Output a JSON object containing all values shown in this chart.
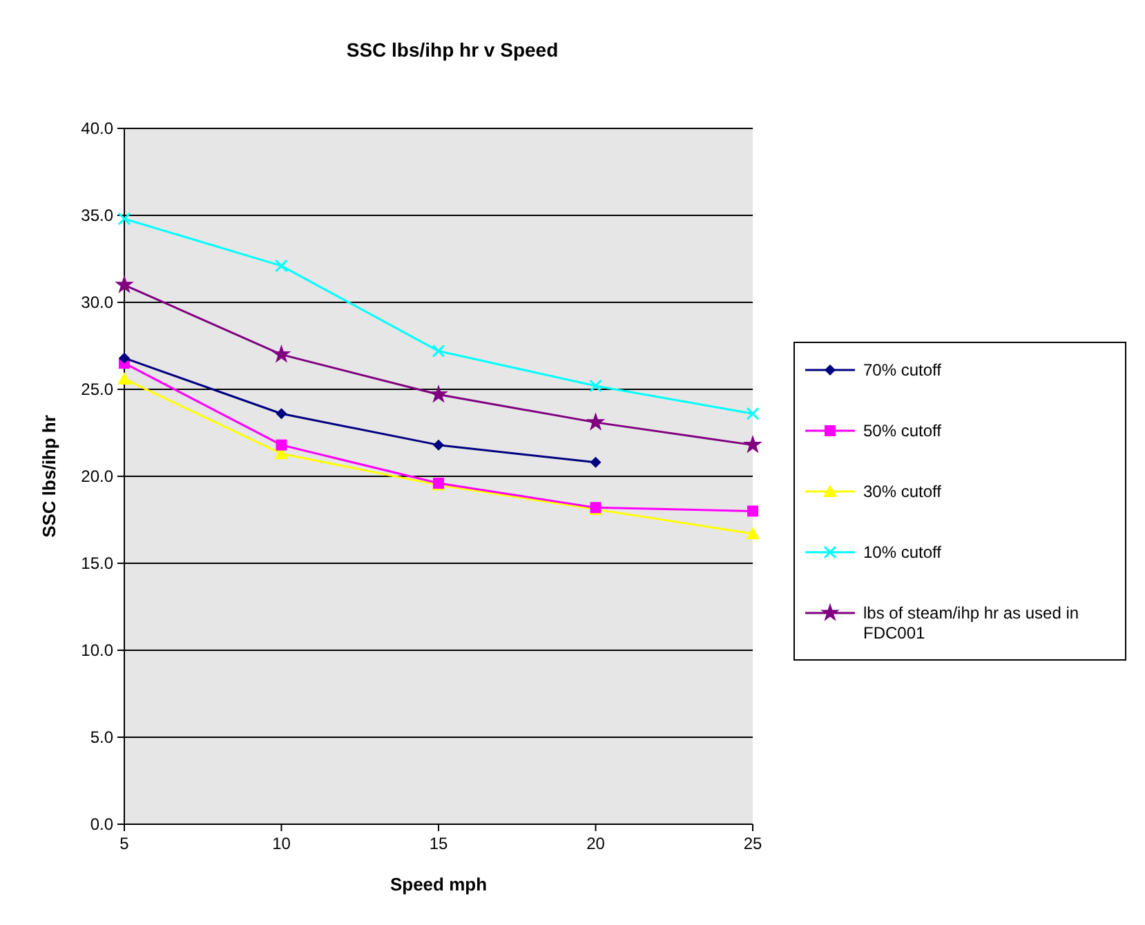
{
  "chart_data": {
    "type": "line",
    "title": "SSC lbs/ihp hr v Speed",
    "xlabel": "Speed mph",
    "ylabel": "SSC lbs/ihp hr",
    "categories": [
      "5",
      "10",
      "15",
      "20",
      "25"
    ],
    "ylim": [
      0,
      40
    ],
    "yticks": [
      {
        "value": 0,
        "label": "0.0"
      },
      {
        "value": 5,
        "label": "5.0"
      },
      {
        "value": 10,
        "label": "10.0"
      },
      {
        "value": 15,
        "label": "15.0"
      },
      {
        "value": 20,
        "label": "20.0"
      },
      {
        "value": 25,
        "label": "25.0"
      },
      {
        "value": 30,
        "label": "30.0"
      },
      {
        "value": 35,
        "label": "35.0"
      },
      {
        "value": 40,
        "label": "40.0"
      }
    ],
    "grid": "y",
    "legend": "right",
    "series": [
      {
        "name": "70% cutoff",
        "color": "#000080",
        "marker": "diamond",
        "values": [
          26.8,
          23.6,
          21.8,
          20.8,
          null
        ]
      },
      {
        "name": "50% cutoff",
        "color": "#ff00ff",
        "marker": "square",
        "values": [
          26.5,
          21.8,
          19.6,
          18.2,
          18.0
        ]
      },
      {
        "name": "30% cutoff",
        "color": "#ffff00",
        "marker": "triangle",
        "values": [
          25.6,
          21.3,
          19.5,
          18.1,
          16.7
        ]
      },
      {
        "name": "10% cutoff",
        "color": "#00ffff",
        "marker": "cross",
        "values": [
          34.8,
          32.1,
          27.2,
          25.2,
          23.6
        ]
      },
      {
        "name": "lbs of steam/ihp hr as used in FDC001",
        "color": "#800080",
        "marker": "star",
        "values": [
          31.0,
          27.0,
          24.7,
          23.1,
          21.8
        ]
      }
    ]
  }
}
